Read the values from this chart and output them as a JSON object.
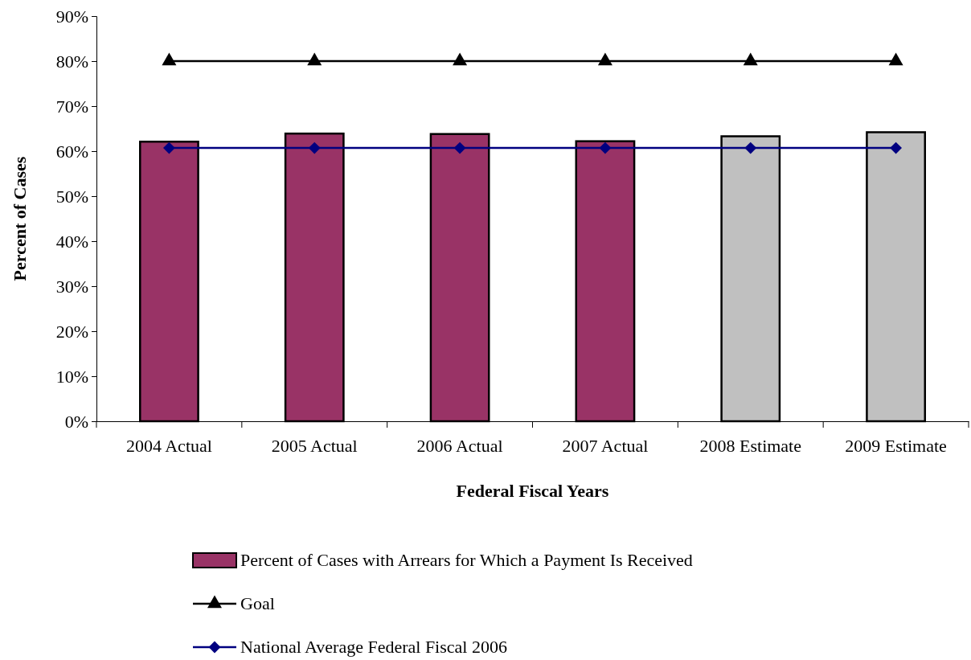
{
  "chart_data": {
    "type": "bar",
    "xlabel": "Federal Fiscal Years",
    "ylabel": "Percent of Cases",
    "categories": [
      "2004 Actual",
      "2005 Actual",
      "2006 Actual",
      "2007 Actual",
      "2008 Estimate",
      "2009 Estimate"
    ],
    "series": [
      {
        "name": "Percent of Cases with Arrears for Which a Payment Is Received",
        "color": "#993366",
        "colors": [
          "#993366",
          "#993366",
          "#993366",
          "#993366",
          "#c0c0c0",
          "#c0c0c0"
        ],
        "values": [
          62.1,
          63.9,
          63.8,
          62.2,
          63.3,
          64.2
        ]
      },
      {
        "name": "Goal",
        "type": "line",
        "color": "#000000",
        "marker": "triangle",
        "values": [
          80,
          80,
          80,
          80,
          80,
          80
        ]
      },
      {
        "name": "National Average Federal Fiscal 2006",
        "type": "line",
        "color": "#000080",
        "marker": "diamond",
        "values": [
          60.7,
          60.7,
          60.7,
          60.7,
          60.7,
          60.7
        ]
      }
    ],
    "ylim": [
      0,
      90
    ],
    "yticks": [
      {
        "value": 0,
        "label": "0%"
      },
      {
        "value": 10,
        "label": "10%"
      },
      {
        "value": 20,
        "label": "20%"
      },
      {
        "value": 30,
        "label": "30%"
      },
      {
        "value": 40,
        "label": "40%"
      },
      {
        "value": 50,
        "label": "50%"
      },
      {
        "value": 60,
        "label": "60%"
      },
      {
        "value": 70,
        "label": "70%"
      },
      {
        "value": 80,
        "label": "80%"
      },
      {
        "value": 90,
        "label": "90%"
      }
    ],
    "grid": false,
    "legend": "bottom"
  }
}
